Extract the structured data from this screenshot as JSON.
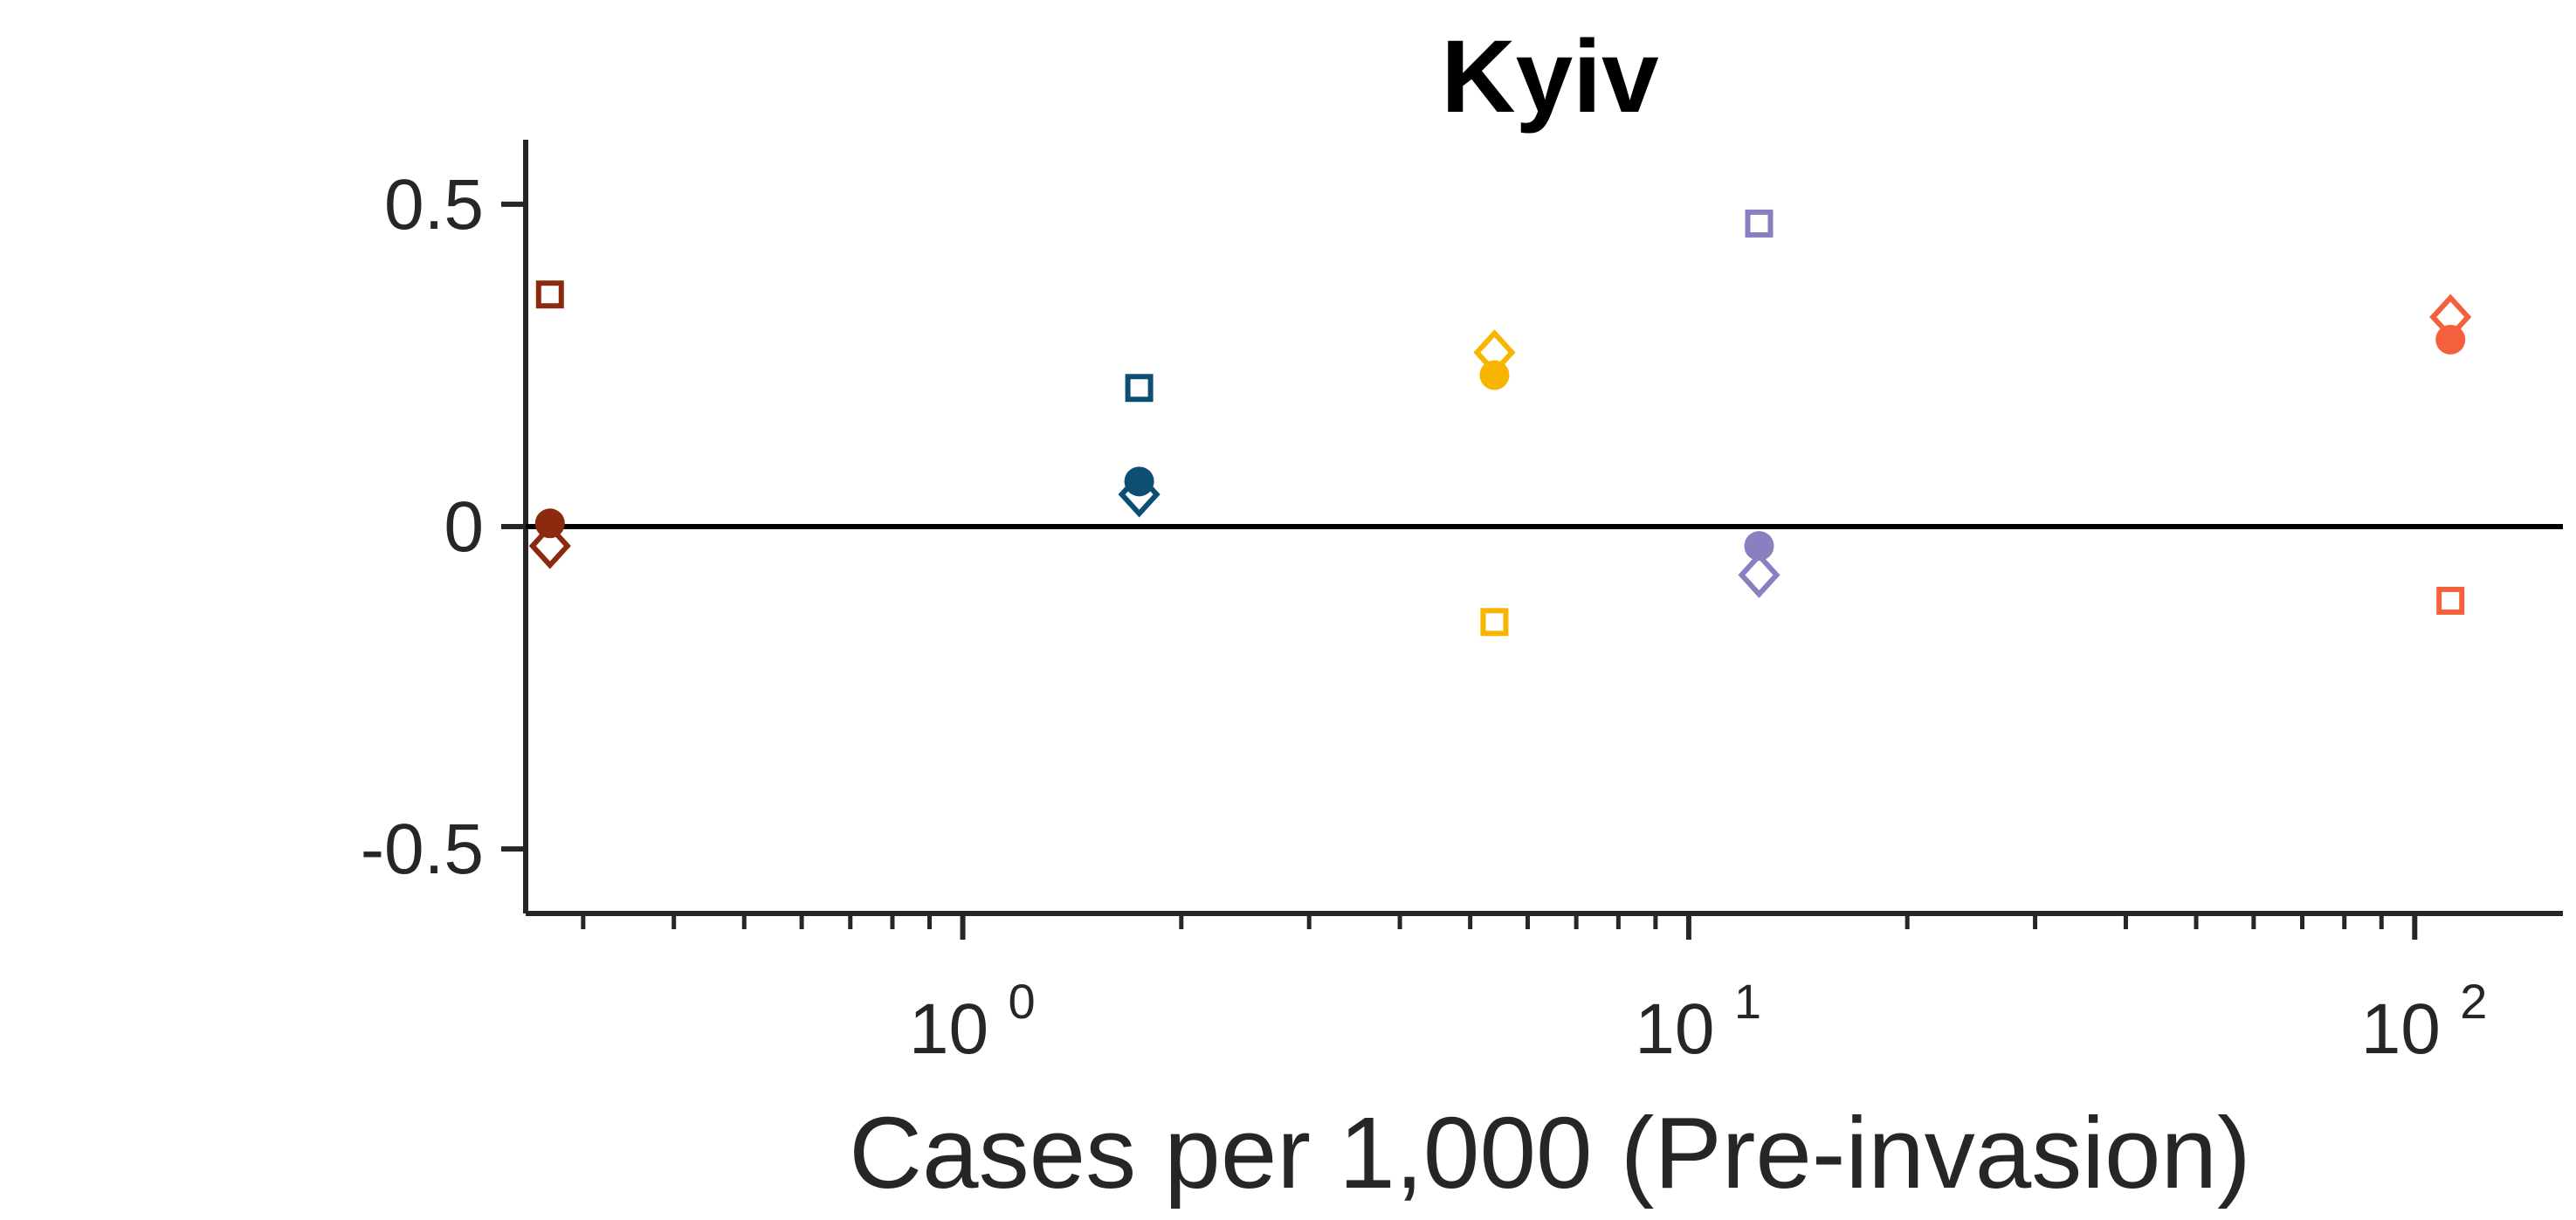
{
  "chart_data": {
    "type": "scatter",
    "title": "Kyiv",
    "xlabel": "Cases per 1,000 (Pre-invasion)",
    "ylabel": "",
    "xscale": "log",
    "xlim": [
      0.25,
      160
    ],
    "ylim": [
      -0.6,
      0.6
    ],
    "yticks": [
      0.5,
      0,
      -0.5
    ],
    "ytick_labels": [
      "0.5",
      "0",
      "-0.5"
    ],
    "xticks": [
      {
        "value": 1,
        "base": "10",
        "exp": "0"
      },
      {
        "value": 10,
        "base": "10",
        "exp": "1"
      },
      {
        "value": 100,
        "base": "10",
        "exp": "2"
      }
    ],
    "reference_line_y": 0,
    "grid": false,
    "legend": "none",
    "marker_types": {
      "circle": "filled",
      "diamond": "open",
      "square": "open"
    },
    "series": [
      {
        "color": "#8b2a0e",
        "x": 0.27,
        "circle": 0.005,
        "diamond": -0.03,
        "square": 0.36
      },
      {
        "color": "#0d4f73",
        "x": 1.75,
        "circle": 0.07,
        "diamond": 0.05,
        "square": 0.215
      },
      {
        "color": "#f7b500",
        "x": 5.4,
        "circle": 0.235,
        "diamond": 0.27,
        "square": -0.148
      },
      {
        "color": "#8a80c0",
        "x": 12.5,
        "circle": -0.03,
        "diamond": -0.075,
        "square": 0.47
      },
      {
        "color": "#f4603d",
        "x": 112,
        "circle": 0.29,
        "diamond": 0.325,
        "square": -0.115
      }
    ]
  }
}
